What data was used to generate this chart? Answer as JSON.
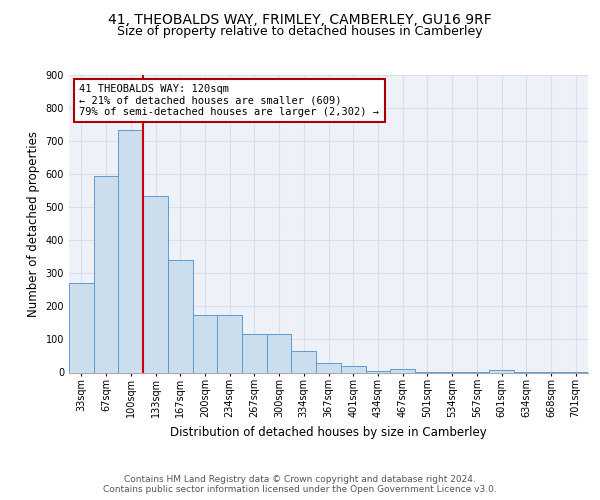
{
  "title_line1": "41, THEOBALDS WAY, FRIMLEY, CAMBERLEY, GU16 9RF",
  "title_line2": "Size of property relative to detached houses in Camberley",
  "xlabel": "Distribution of detached houses by size in Camberley",
  "ylabel": "Number of detached properties",
  "bar_color": "#ccdded",
  "bar_edge_color": "#5b9bd5",
  "background_color": "#eef2f8",
  "grid_color": "#d8dfe8",
  "annotation_box_color": "#aa0000",
  "annotation_line_color": "#cc0000",
  "annotation_text": "41 THEOBALDS WAY: 120sqm\n← 21% of detached houses are smaller (609)\n79% of semi-detached houses are larger (2,302) →",
  "categories": [
    "33sqm",
    "67sqm",
    "100sqm",
    "133sqm",
    "167sqm",
    "200sqm",
    "234sqm",
    "267sqm",
    "300sqm",
    "334sqm",
    "367sqm",
    "401sqm",
    "434sqm",
    "467sqm",
    "501sqm",
    "534sqm",
    "567sqm",
    "601sqm",
    "634sqm",
    "668sqm",
    "701sqm"
  ],
  "values": [
    270,
    595,
    735,
    535,
    340,
    175,
    175,
    115,
    115,
    65,
    30,
    20,
    5,
    10,
    2,
    2,
    2,
    8,
    2,
    2,
    2
  ],
  "vline_x_index": 2.5,
  "ylim": [
    0,
    900
  ],
  "yticks": [
    0,
    100,
    200,
    300,
    400,
    500,
    600,
    700,
    800,
    900
  ],
  "footer_text": "Contains HM Land Registry data © Crown copyright and database right 2024.\nContains public sector information licensed under the Open Government Licence v3.0.",
  "title_fontsize": 10,
  "subtitle_fontsize": 9,
  "axis_label_fontsize": 8.5,
  "tick_fontsize": 7,
  "annotation_fontsize": 7.5,
  "footer_fontsize": 6.5
}
